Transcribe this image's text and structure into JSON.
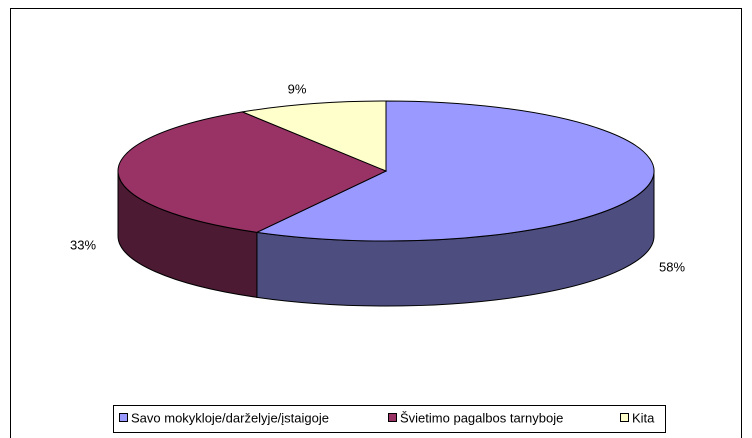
{
  "chart_data": {
    "type": "pie3d",
    "categories": [
      "Savo mokykloje/darželyje/įstaigoje",
      "Švietimo pagalbos tarnyboje",
      "Kita"
    ],
    "values": [
      58,
      33,
      9
    ],
    "value_labels": [
      "58%",
      "33%",
      "9%"
    ],
    "colors": [
      "#9999ff",
      "#993366",
      "#ffffcc"
    ],
    "legend": "bottom"
  }
}
